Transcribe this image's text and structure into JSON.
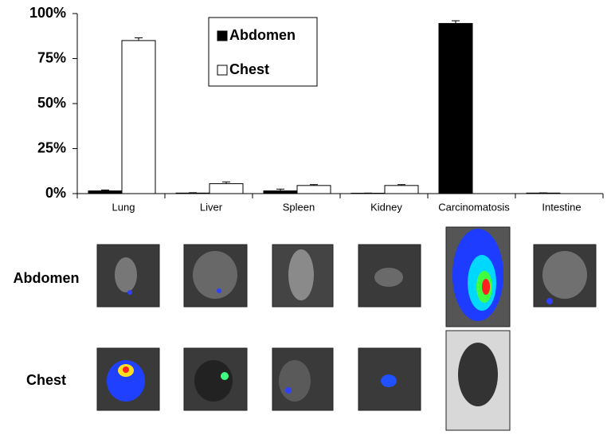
{
  "chart_data": {
    "type": "bar",
    "categories": [
      "Lung",
      "Liver",
      "Spleen",
      "Kidney",
      "Carcinomatosis",
      "Intestine"
    ],
    "series": [
      {
        "name": "Abdomen",
        "color": "#000000",
        "values": [
          1.5,
          0.3,
          1.5,
          0.2,
          94.5,
          0.3
        ],
        "errors": [
          0.5,
          0.2,
          1,
          0.1,
          1.5,
          0.1
        ]
      },
      {
        "name": "Chest",
        "color": "#ffffff",
        "values": [
          85,
          5.5,
          4.5,
          4.5,
          0,
          0
        ],
        "errors": [
          1.5,
          1,
          0.5,
          0.5,
          0,
          0
        ]
      }
    ],
    "ylim": [
      0,
      100
    ],
    "yticks": [
      {
        "value": 0,
        "label": "0%"
      },
      {
        "value": 25,
        "label": "25%"
      },
      {
        "value": 50,
        "label": "50%"
      },
      {
        "value": 75,
        "label": "75%"
      },
      {
        "value": 100,
        "label": "100%"
      }
    ],
    "grid": false,
    "legend": "top"
  },
  "image_panel": {
    "row_labels": [
      "Abdomen",
      "Chest"
    ]
  }
}
